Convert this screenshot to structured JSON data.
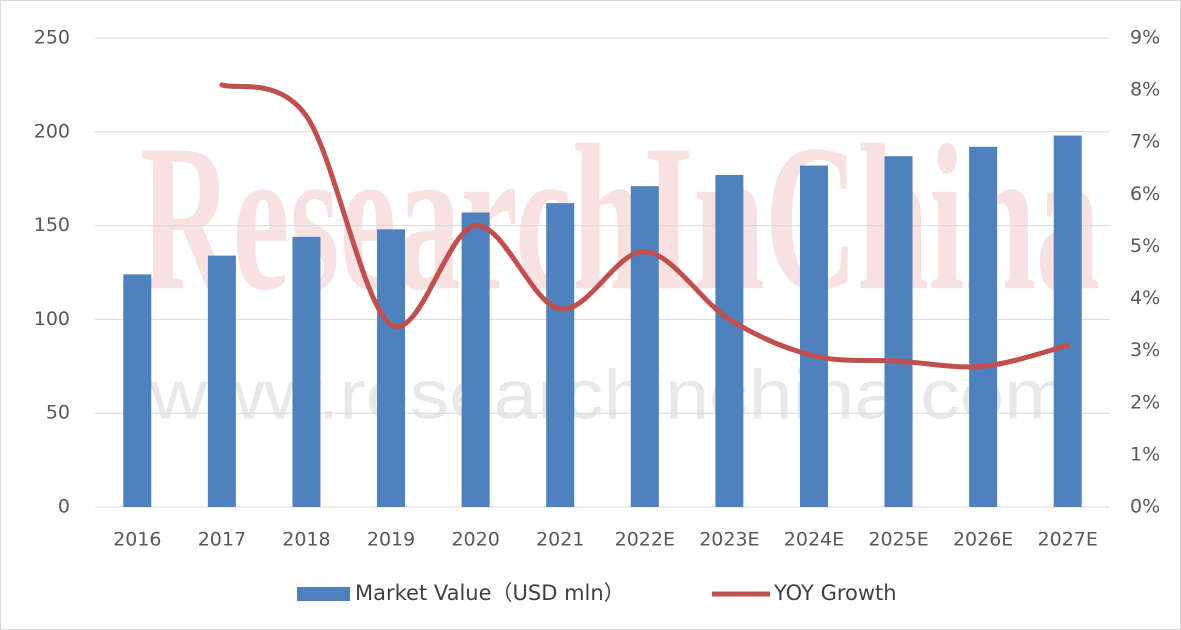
{
  "chart_data": {
    "type": "bar",
    "watermark": "ResearchInChina",
    "watermark_url": "www.researchinchina.com",
    "categories": [
      "2016",
      "2017",
      "2018",
      "2019",
      "2020",
      "2021",
      "2022E",
      "2023E",
      "2024E",
      "2025E",
      "2026E",
      "2027E"
    ],
    "series": [
      {
        "name": "Market Value（USD mln）",
        "type": "bar",
        "color": "#4f81bd",
        "values": [
          124,
          134,
          144,
          148,
          157,
          162,
          171,
          177,
          182,
          187,
          192,
          198
        ]
      },
      {
        "name": "YOY Growth",
        "type": "line",
        "axis": "y2",
        "color": "#c0504d",
        "values": [
          null,
          8.1,
          7.5,
          3.5,
          5.4,
          3.8,
          4.9,
          3.6,
          2.9,
          2.8,
          2.7,
          3.1
        ]
      }
    ],
    "ylim": [
      0,
      250
    ],
    "yticks": [
      0,
      50,
      100,
      150,
      200,
      250
    ],
    "y2lim": [
      0,
      9
    ],
    "y2ticks": [
      {
        "value": 0,
        "label": "0%"
      },
      {
        "value": 1,
        "label": "1%"
      },
      {
        "value": 2,
        "label": "2%"
      },
      {
        "value": 3,
        "label": "3%"
      },
      {
        "value": 4,
        "label": "4%"
      },
      {
        "value": 5,
        "label": "5%"
      },
      {
        "value": 6,
        "label": "6%"
      },
      {
        "value": 7,
        "label": "7%"
      },
      {
        "value": 8,
        "label": "8%"
      },
      {
        "value": 9,
        "label": "9%"
      }
    ],
    "grid": true,
    "legend": "bottom"
  }
}
